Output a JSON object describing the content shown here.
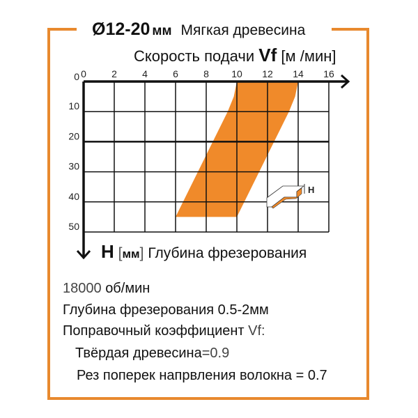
{
  "title": {
    "diameter": "Ø12-20",
    "unit": "мм",
    "material": "Мягкая древесина"
  },
  "colors": {
    "frame": "#e8892e",
    "region": "#f08a2a"
  },
  "chart_data": {
    "type": "area",
    "title": "Ø12-20 мм Мягкая древесина",
    "xlabel": {
      "text": "Скорость подачи",
      "symbol": "Vf",
      "unit": "[м /мин]"
    },
    "ylabel": {
      "symbol": "H",
      "unit_open": "[",
      "unit": "мм",
      "unit_close": "]",
      "text": "Глубина фрезерования"
    },
    "xlim": [
      0,
      16
    ],
    "ylim": [
      0,
      50
    ],
    "y_inverted": true,
    "grid": true,
    "x_ticks": [
      "0",
      "2",
      "4",
      "6",
      "8",
      "10",
      "12",
      "14",
      "16"
    ],
    "y_ticks": [
      "0",
      "10",
      "20",
      "30",
      "40",
      "50"
    ],
    "region": {
      "left_edge": [
        [
          10,
          0
        ],
        [
          9.8,
          5
        ],
        [
          9.4,
          10
        ],
        [
          6,
          45
        ]
      ],
      "right_edge": [
        [
          14,
          0
        ],
        [
          13.8,
          5
        ],
        [
          13.4,
          10
        ],
        [
          10,
          45
        ]
      ]
    },
    "inset_label": "H"
  },
  "notes": {
    "rpm_value": "18000",
    "rpm_unit": "об/мин",
    "depth_label": "Глубина фрезерования",
    "depth_value": "0.5-2мм",
    "coef_label": "Поправочный коэффициент",
    "coef_symbol": "Vf:",
    "hardwood_label": "Твёрдая древесина",
    "hardwood_value": "=0.9",
    "crossgrain": "Рез поперек напрвления волокна = 0.7"
  }
}
